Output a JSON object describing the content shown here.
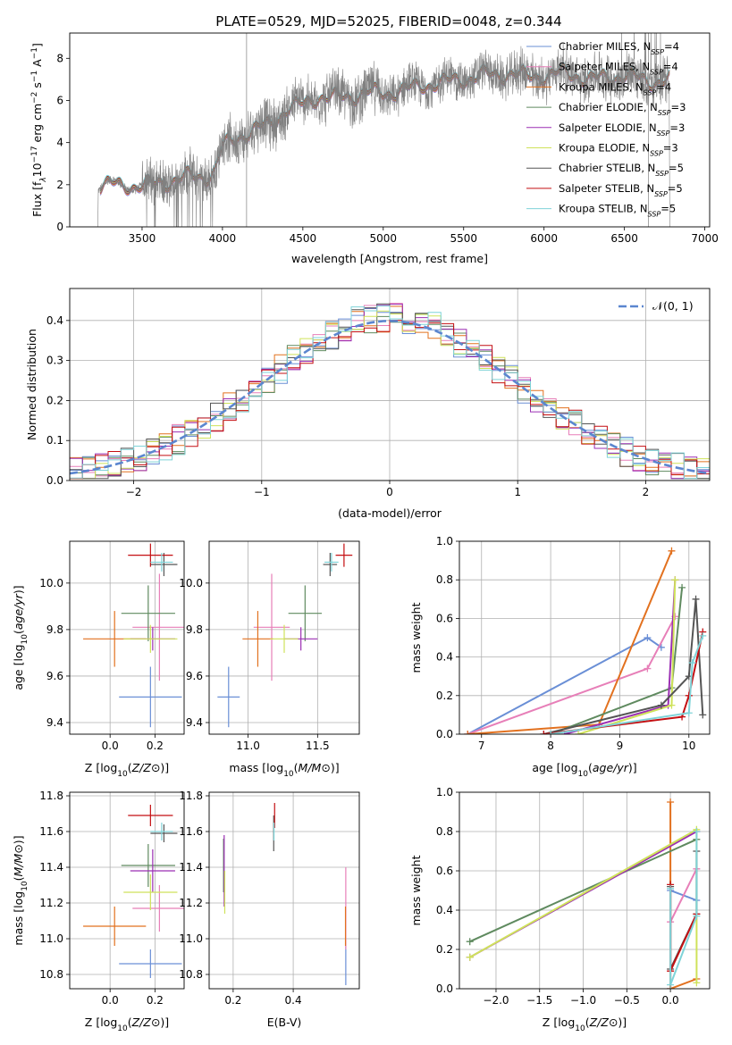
{
  "figure_title": "PLATE=0529, MJD=52025, FIBERID=0048, z=0.344",
  "colors": {
    "Chabrier MILES": "#6a8fd6",
    "Salpeter MILES": "#e77fb8",
    "Kroupa MILES": "#e2711f",
    "Chabrier ELODIE": "#5f8a5f",
    "Salpeter ELODIE": "#9b2fb3",
    "Kroupa ELODIE": "#cfe25a",
    "Chabrier STELIB": "#555555",
    "Salpeter STELIB": "#c40f12",
    "Kroupa STELIB": "#7fd3d8",
    "data": "#808080",
    "normal": "#5b86cf"
  },
  "chart_data": [
    {
      "id": "spectrum",
      "type": "line",
      "title": "PLATE=0529, MJD=52025, FIBERID=0048, z=0.344",
      "xlabel": "wavelength [Angstrom, rest frame]",
      "ylabel": "Flux [f_λ 10^-17 erg cm^-2 s^-1 A^-1]",
      "xlim": [
        3050,
        7030
      ],
      "ylim": [
        0,
        9.2
      ],
      "xticks": [
        3500,
        4000,
        4500,
        5000,
        5500,
        6000,
        6500,
        7000
      ],
      "yticks": [
        0,
        2,
        4,
        6,
        8
      ],
      "grid": false,
      "legend_position": "top-right",
      "legend": [
        {
          "name": "Chabrier MILES",
          "sub": "SSP",
          "n": "=4"
        },
        {
          "name": "Salpeter MILES",
          "sub": "SSP",
          "n": "=4"
        },
        {
          "name": "Kroupa MILES",
          "sub": "SSP",
          "n": "=4"
        },
        {
          "name": "Chabrier ELODIE",
          "sub": "SSP",
          "n": "=3"
        },
        {
          "name": "Salpeter ELODIE",
          "sub": "SSP",
          "n": "=3"
        },
        {
          "name": "Kroupa ELODIE",
          "sub": "SSP",
          "n": "=3"
        },
        {
          "name": "Chabrier STELIB",
          "sub": "SSP",
          "n": "=5"
        },
        {
          "name": "Salpeter STELIB",
          "sub": "SSP",
          "n": "=5"
        },
        {
          "name": "Kroupa STELIB",
          "sub": "SSP",
          "n": "=5"
        }
      ],
      "continuum": {
        "wavelength": [
          3240,
          3300,
          3400,
          3500,
          3600,
          3700,
          3800,
          3900,
          3950,
          4000,
          4100,
          4200,
          4300,
          4400,
          4500,
          4600,
          4700,
          4800,
          4900,
          5000,
          5100,
          5200,
          5300,
          5400,
          5500,
          5600,
          5700,
          5800,
          5900,
          6000,
          6100,
          6200,
          6300,
          6400,
          6500,
          6600,
          6700,
          6780
        ],
        "flux": [
          1.9,
          2.0,
          2.0,
          1.9,
          2.1,
          2.2,
          2.4,
          2.4,
          2.6,
          3.8,
          4.3,
          4.6,
          4.9,
          5.6,
          5.8,
          6.2,
          6.1,
          6.2,
          6.4,
          6.3,
          6.5,
          6.6,
          6.8,
          6.9,
          7.0,
          7.2,
          7.2,
          7.3,
          7.1,
          7.2,
          7.3,
          7.2,
          7.0,
          7.1,
          7.2,
          7.0,
          6.9,
          7.0
        ]
      }
    },
    {
      "id": "residuals",
      "type": "bar",
      "xlabel": "(data-model)/error",
      "ylabel": "Normed distribution",
      "xlim": [
        -2.5,
        2.5
      ],
      "ylim": [
        0,
        0.48
      ],
      "xticks": [
        -2,
        -1,
        0,
        1,
        2
      ],
      "yticks": [
        0.0,
        0.1,
        0.2,
        0.3,
        0.4
      ],
      "grid": true,
      "legend_position": "top-right",
      "legend": [
        {
          "name": "𝒩(0, 1)",
          "style": "dashed"
        }
      ],
      "bin_width": 0.1,
      "bin_start": -2.5
    },
    {
      "id": "age-vs-Z",
      "type": "scatter",
      "xlabel": "Z [log10(Z/Z⊙)]",
      "ylabel": "age  [log10(age/yr)]",
      "xlim": [
        -0.18,
        0.33
      ],
      "ylim": [
        9.35,
        10.18
      ],
      "xticks": [
        0.0,
        0.2
      ],
      "yticks": [
        9.4,
        9.6,
        9.8,
        10.0
      ],
      "grid": true,
      "errorbars": [
        {
          "model": "Chabrier MILES",
          "x": 0.18,
          "y": 9.51,
          "xerr": 0.14,
          "yerr": 0.13
        },
        {
          "model": "Salpeter MILES",
          "x": 0.22,
          "y": 9.81,
          "xerr": 0.12,
          "yerr": 0.23
        },
        {
          "model": "Kroupa MILES",
          "x": 0.02,
          "y": 9.76,
          "xerr": 0.14,
          "yerr": 0.12
        },
        {
          "model": "Chabrier ELODIE",
          "x": 0.17,
          "y": 9.87,
          "xerr": 0.12,
          "yerr": 0.12
        },
        {
          "model": "Salpeter ELODIE",
          "x": 0.19,
          "y": 9.76,
          "xerr": 0.1,
          "yerr": 0.05
        },
        {
          "model": "Kroupa ELODIE",
          "x": 0.18,
          "y": 9.76,
          "xerr": 0.12,
          "yerr": 0.06
        },
        {
          "model": "Chabrier STELIB",
          "x": 0.24,
          "y": 10.08,
          "xerr": 0.06,
          "yerr": 0.05
        },
        {
          "model": "Salpeter STELIB",
          "x": 0.18,
          "y": 10.12,
          "xerr": 0.1,
          "yerr": 0.05
        },
        {
          "model": "Kroupa STELIB",
          "x": 0.23,
          "y": 10.09,
          "xerr": 0.05,
          "yerr": 0.04
        }
      ]
    },
    {
      "id": "age-vs-mass",
      "type": "scatter",
      "xlabel": "mass [log10(M/M⊙)]",
      "ylabel": "",
      "xlim": [
        10.72,
        11.8
      ],
      "ylim": [
        9.35,
        10.18
      ],
      "xticks": [
        11.0,
        11.5
      ],
      "yticks": [
        9.4,
        9.6,
        9.8,
        10.0
      ],
      "grid": true,
      "errorbars": [
        {
          "model": "Chabrier MILES",
          "x": 10.86,
          "y": 9.51,
          "xerr": 0.08,
          "yerr": 0.13
        },
        {
          "model": "Salpeter MILES",
          "x": 11.17,
          "y": 9.81,
          "xerr": 0.13,
          "yerr": 0.23
        },
        {
          "model": "Kroupa MILES",
          "x": 11.07,
          "y": 9.76,
          "xerr": 0.11,
          "yerr": 0.12
        },
        {
          "model": "Chabrier ELODIE",
          "x": 11.41,
          "y": 9.87,
          "xerr": 0.12,
          "yerr": 0.12
        },
        {
          "model": "Salpeter ELODIE",
          "x": 11.38,
          "y": 9.76,
          "xerr": 0.12,
          "yerr": 0.05
        },
        {
          "model": "Kroupa ELODIE",
          "x": 11.26,
          "y": 9.76,
          "xerr": 0.1,
          "yerr": 0.06
        },
        {
          "model": "Chabrier STELIB",
          "x": 11.59,
          "y": 10.08,
          "xerr": 0.05,
          "yerr": 0.05
        },
        {
          "model": "Salpeter STELIB",
          "x": 11.69,
          "y": 10.12,
          "xerr": 0.06,
          "yerr": 0.05
        },
        {
          "model": "Kroupa STELIB",
          "x": 11.6,
          "y": 10.09,
          "xerr": 0.05,
          "yerr": 0.04
        }
      ]
    },
    {
      "id": "mass-weight-vs-age",
      "type": "line",
      "xlabel": "age  [log10(age/yr)]",
      "ylabel": "mass weight",
      "xlim": [
        6.68,
        10.3
      ],
      "ylim": [
        0,
        1.0
      ],
      "xticks": [
        7,
        8,
        9,
        10
      ],
      "yticks": [
        0.0,
        0.2,
        0.4,
        0.6,
        0.8,
        1.0
      ],
      "grid": true,
      "series": [
        {
          "model": "Chabrier MILES",
          "x": [
            6.8,
            9.4,
            9.6
          ],
          "y": [
            0.0,
            0.5,
            0.45
          ]
        },
        {
          "model": "Salpeter MILES",
          "x": [
            6.8,
            9.4,
            9.8
          ],
          "y": [
            0.0,
            0.34,
            0.61
          ]
        },
        {
          "model": "Kroupa MILES",
          "x": [
            6.8,
            8.7,
            9.75
          ],
          "y": [
            0.0,
            0.05,
            0.95
          ]
        },
        {
          "model": "Chabrier ELODIE",
          "x": [
            8.0,
            9.75,
            9.9
          ],
          "y": [
            0.0,
            0.24,
            0.76
          ]
        },
        {
          "model": "Salpeter ELODIE",
          "x": [
            8.2,
            9.7,
            9.8
          ],
          "y": [
            0.0,
            0.15,
            0.8
          ]
        },
        {
          "model": "Kroupa ELODIE",
          "x": [
            8.4,
            9.75,
            9.8
          ],
          "y": [
            0.0,
            0.15,
            0.8
          ]
        },
        {
          "model": "Chabrier STELIB",
          "x": [
            7.9,
            9.6,
            10.0,
            10.1,
            10.2
          ],
          "y": [
            0.0,
            0.15,
            0.3,
            0.7,
            0.1
          ]
        },
        {
          "model": "Salpeter STELIB",
          "x": [
            7.9,
            9.9,
            10.0,
            10.2
          ],
          "y": [
            0.0,
            0.09,
            0.2,
            0.53
          ]
        },
        {
          "model": "Kroupa STELIB",
          "x": [
            8.0,
            10.0,
            10.05,
            10.2
          ],
          "y": [
            0.0,
            0.11,
            0.37,
            0.51
          ]
        }
      ]
    },
    {
      "id": "mass-vs-Z",
      "type": "scatter",
      "xlabel": "Z [log10(Z/Z⊙)]",
      "ylabel": "mass [log10(M/M⊙)]",
      "xlim": [
        -0.18,
        0.33
      ],
      "ylim": [
        10.72,
        11.82
      ],
      "xticks": [
        0.0,
        0.2
      ],
      "yticks": [
        10.8,
        11.0,
        11.2,
        11.4,
        11.6,
        11.8
      ],
      "grid": true,
      "errorbars": [
        {
          "model": "Chabrier MILES",
          "x": 0.18,
          "y": 10.86,
          "xerr": 0.14,
          "yerr": 0.08
        },
        {
          "model": "Salpeter MILES",
          "x": 0.22,
          "y": 11.17,
          "xerr": 0.12,
          "yerr": 0.13
        },
        {
          "model": "Kroupa MILES",
          "x": 0.02,
          "y": 11.07,
          "xerr": 0.14,
          "yerr": 0.11
        },
        {
          "model": "Chabrier ELODIE",
          "x": 0.17,
          "y": 11.41,
          "xerr": 0.12,
          "yerr": 0.12
        },
        {
          "model": "Salpeter ELODIE",
          "x": 0.19,
          "y": 11.38,
          "xerr": 0.1,
          "yerr": 0.12
        },
        {
          "model": "Kroupa ELODIE",
          "x": 0.18,
          "y": 11.26,
          "xerr": 0.12,
          "yerr": 0.1
        },
        {
          "model": "Chabrier STELIB",
          "x": 0.24,
          "y": 11.59,
          "xerr": 0.06,
          "yerr": 0.05
        },
        {
          "model": "Salpeter STELIB",
          "x": 0.18,
          "y": 11.69,
          "xerr": 0.1,
          "yerr": 0.06
        },
        {
          "model": "Kroupa STELIB",
          "x": 0.23,
          "y": 11.6,
          "xerr": 0.05,
          "yerr": 0.05
        }
      ]
    },
    {
      "id": "mass-vs-ebv",
      "type": "scatter",
      "xlabel": "E(B-V)",
      "ylabel": "",
      "xlim": [
        0.12,
        0.62
      ],
      "ylim": [
        10.72,
        11.82
      ],
      "xticks": [
        0.2,
        0.4
      ],
      "yticks": [
        10.8,
        11.0,
        11.2,
        11.4,
        11.6,
        11.8
      ],
      "grid": true,
      "errorbars": [
        {
          "model": "Chabrier MILES",
          "x": 0.575,
          "y": 10.86,
          "xerr": 0.0,
          "yerr": 0.12
        },
        {
          "model": "Salpeter MILES",
          "x": 0.575,
          "y": 11.17,
          "xerr": 0.0,
          "yerr": 0.23
        },
        {
          "model": "Kroupa MILES",
          "x": 0.574,
          "y": 11.07,
          "xerr": 0.0,
          "yerr": 0.11
        },
        {
          "model": "Chabrier ELODIE",
          "x": 0.168,
          "y": 11.41,
          "xerr": 0.0,
          "yerr": 0.15
        },
        {
          "model": "Salpeter ELODIE",
          "x": 0.17,
          "y": 11.38,
          "xerr": 0.0,
          "yerr": 0.2
        },
        {
          "model": "Kroupa ELODIE",
          "x": 0.172,
          "y": 11.26,
          "xerr": 0.0,
          "yerr": 0.12
        },
        {
          "model": "Chabrier STELIB",
          "x": 0.335,
          "y": 11.59,
          "xerr": 0.0,
          "yerr": 0.1
        },
        {
          "model": "Salpeter STELIB",
          "x": 0.338,
          "y": 11.69,
          "xerr": 0.0,
          "yerr": 0.07
        },
        {
          "model": "Kroupa STELIB",
          "x": 0.336,
          "y": 11.6,
          "xerr": 0.0,
          "yerr": 0.05
        }
      ]
    },
    {
      "id": "mass-weight-vs-Z",
      "type": "line",
      "xlabel": "Z [log10(Z/Z⊙)]",
      "ylabel": "mass weight",
      "xlim": [
        -2.42,
        0.45
      ],
      "ylim": [
        0,
        1.0
      ],
      "xticks": [
        -2.0,
        -1.5,
        -1.0,
        -0.5,
        0.0
      ],
      "yticks": [
        0.0,
        0.2,
        0.4,
        0.6,
        0.8,
        1.0
      ],
      "grid": true,
      "series": [
        {
          "model": "Chabrier MILES",
          "x": [
            0.0,
            0.0,
            0.3
          ],
          "y": [
            0.0,
            0.5,
            0.45
          ]
        },
        {
          "model": "Salpeter MILES",
          "x": [
            0.0,
            0.0,
            0.3
          ],
          "y": [
            0.0,
            0.34,
            0.61
          ]
        },
        {
          "model": "Kroupa MILES",
          "x": [
            0.0,
            0.0,
            0.3
          ],
          "y": [
            0.95,
            0.0,
            0.05
          ]
        },
        {
          "model": "Chabrier ELODIE",
          "x": [
            -2.3,
            0.3
          ],
          "y": [
            0.24,
            0.76
          ]
        },
        {
          "model": "Salpeter ELODIE",
          "x": [
            -2.3,
            0.3
          ],
          "y": [
            0.16,
            0.8
          ]
        },
        {
          "model": "Kroupa ELODIE",
          "x": [
            -2.3,
            0.3,
            0.3
          ],
          "y": [
            0.16,
            0.81,
            0.03
          ]
        },
        {
          "model": "Chabrier STELIB",
          "x": [
            0.0,
            0.0,
            0.3,
            0.3
          ],
          "y": [
            0.52,
            0.1,
            0.38,
            0.7
          ]
        },
        {
          "model": "Salpeter STELIB",
          "x": [
            0.0,
            0.0,
            0.3
          ],
          "y": [
            0.53,
            0.09,
            0.38
          ]
        },
        {
          "model": "Kroupa STELIB",
          "x": [
            0.0,
            0.0,
            0.3,
            0.3
          ],
          "y": [
            0.51,
            0.02,
            0.37,
            0.8
          ]
        }
      ]
    }
  ]
}
